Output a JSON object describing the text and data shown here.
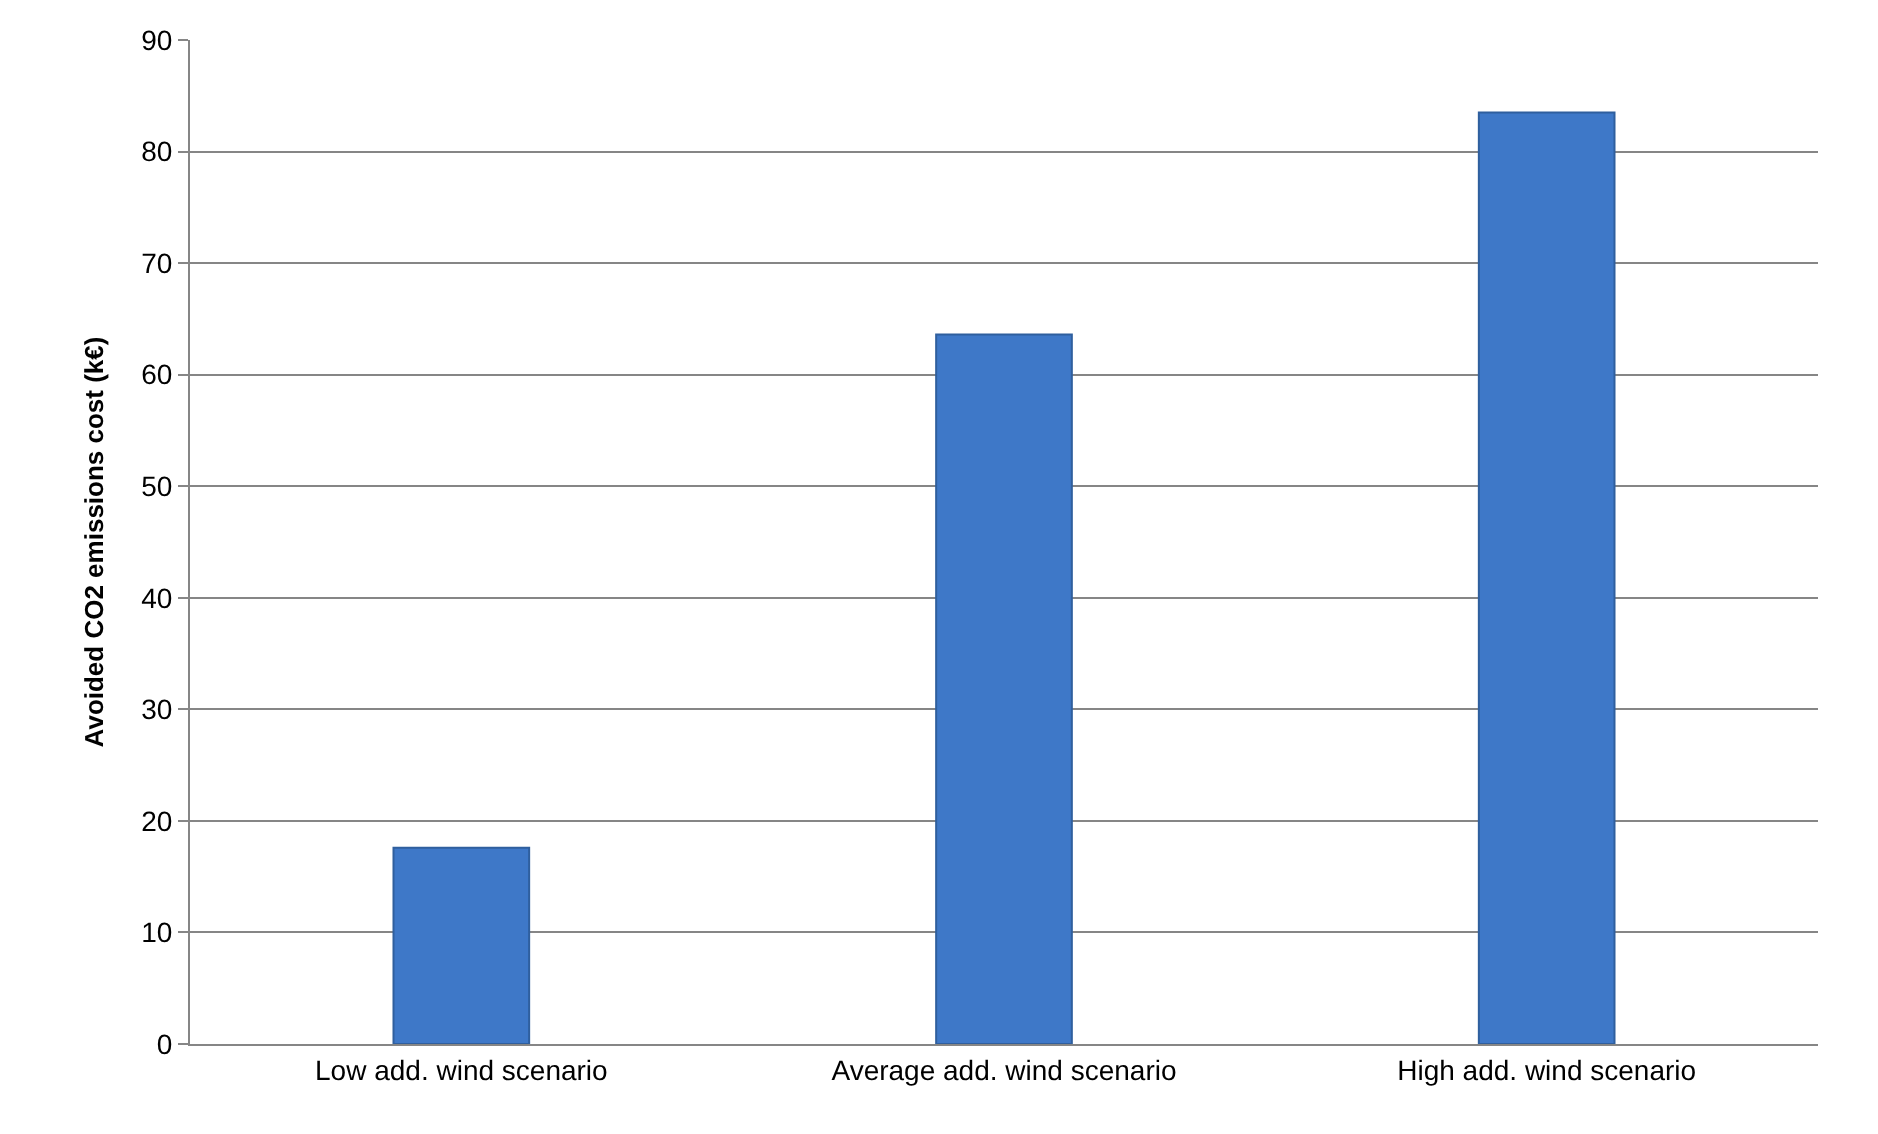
{
  "chart_data": {
    "type": "bar",
    "ylabel": "Avoided CO2 emissions cost (k€)",
    "categories": [
      "Low add. wind scenario",
      "Average add. wind scenario",
      "High add. wind scenario"
    ],
    "values": [
      17.6,
      63.6,
      83.5
    ],
    "color": "#3e78c8",
    "ylim": [
      0,
      90
    ],
    "yticks": [
      0,
      10,
      20,
      30,
      40,
      50,
      60,
      70,
      80,
      90
    ],
    "grid": "y"
  }
}
